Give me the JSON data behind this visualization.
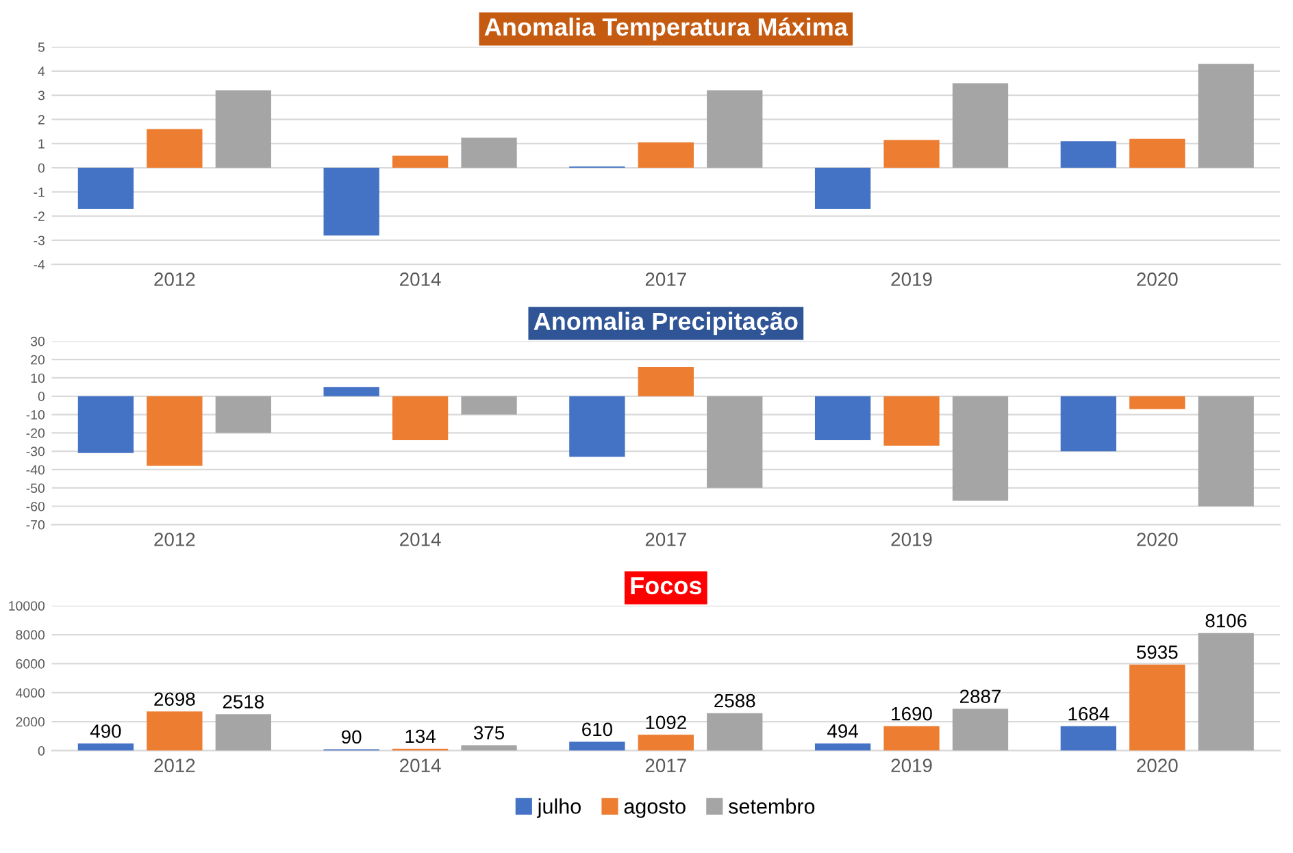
{
  "chart_data": [
    {
      "type": "bar",
      "title": "Anomalia Temperatura Máxima",
      "categories": [
        "2012",
        "2014",
        "2017",
        "2019",
        "2020"
      ],
      "series": [
        {
          "color": "#4472c4",
          "values": [
            -1.7,
            -2.8,
            0.05,
            -1.7,
            1.1
          ]
        },
        {
          "color": "#ed7d31",
          "values": [
            1.6,
            0.5,
            1.05,
            1.15,
            1.2
          ]
        },
        {
          "color": "#a5a5a5",
          "values": [
            3.2,
            1.25,
            3.2,
            3.5,
            4.3
          ]
        }
      ],
      "ylim": [
        -4,
        5
      ],
      "yticks": [
        -4,
        -3,
        -2,
        -1,
        0,
        1,
        2,
        3,
        4,
        5
      ],
      "grid": "y"
    },
    {
      "type": "bar",
      "title": "Anomalia Precipitação",
      "categories": [
        "2012",
        "2014",
        "2017",
        "2019",
        "2020"
      ],
      "series": [
        {
          "color": "#4472c4",
          "values": [
            -31,
            5,
            -33,
            -24,
            -30
          ]
        },
        {
          "color": "#ed7d31",
          "values": [
            -38,
            -24,
            16,
            -27,
            -7
          ]
        },
        {
          "color": "#a5a5a5",
          "values": [
            -20,
            -10,
            -50,
            -57,
            -60
          ]
        }
      ],
      "ylim": [
        -70,
        30
      ],
      "yticks": [
        -70,
        -60,
        -50,
        -40,
        -30,
        -20,
        -10,
        0,
        10,
        20,
        30
      ],
      "grid": "y"
    },
    {
      "type": "bar",
      "title": "Focos",
      "categories": [
        "2012",
        "2014",
        "2017",
        "2019",
        "2020"
      ],
      "series": [
        {
          "name": "julho",
          "color": "#4472c4",
          "values": [
            490,
            90,
            610,
            494,
            1684
          ]
        },
        {
          "name": "agosto",
          "color": "#ed7d31",
          "values": [
            2698,
            134,
            1092,
            1690,
            5935
          ]
        },
        {
          "name": "setembro",
          "color": "#a5a5a5",
          "values": [
            2518,
            375,
            2588,
            2887,
            8106
          ]
        }
      ],
      "ylim": [
        0,
        10000
      ],
      "yticks": [
        0,
        2000,
        4000,
        6000,
        8000,
        10000
      ],
      "grid": "y",
      "data_labels": true,
      "legend": "bottom"
    }
  ]
}
